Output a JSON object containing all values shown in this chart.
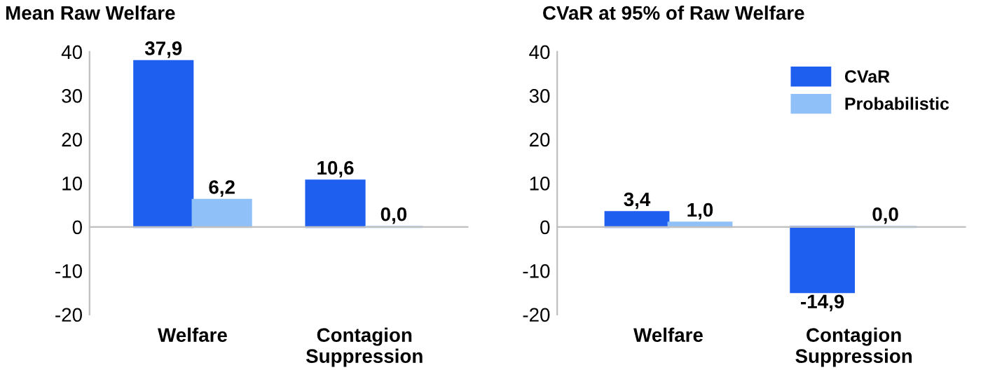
{
  "chart_data": [
    {
      "type": "bar",
      "title": "Mean Raw Welfare",
      "categories": [
        "Welfare",
        "Contagion\nSuppression"
      ],
      "series": [
        {
          "color": "#1f5ff0",
          "values": [
            37.9,
            10.6
          ],
          "value_labels": [
            "37,9",
            "10,6"
          ]
        },
        {
          "color": "#8fc0f7",
          "values": [
            6.2,
            0.0
          ],
          "value_labels": [
            "6,2",
            "0,0"
          ]
        }
      ],
      "ylim": [
        -20,
        40
      ],
      "yticks": [
        -20,
        -10,
        0,
        10,
        20,
        30,
        40
      ],
      "legend": false
    },
    {
      "type": "bar",
      "title": "CVaR at 95% of Raw Welfare",
      "categories": [
        "Welfare",
        "Contagion\nSuppression"
      ],
      "series": [
        {
          "name": "CVaR",
          "color": "#1f5ff0",
          "values": [
            3.4,
            -14.9
          ],
          "value_labels": [
            "3,4",
            "-14,9"
          ]
        },
        {
          "name": "Probabilistic",
          "color": "#8fc0f7",
          "values": [
            1.0,
            0.0
          ],
          "value_labels": [
            "1,0",
            "0,0"
          ]
        }
      ],
      "ylim": [
        -20,
        40
      ],
      "yticks": [
        -20,
        -10,
        0,
        10,
        20,
        30,
        40
      ],
      "legend": "top right"
    }
  ]
}
